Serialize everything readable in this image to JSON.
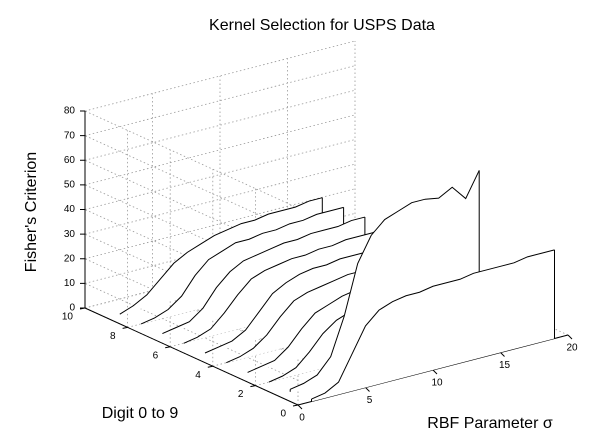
{
  "chart_data": {
    "type": "waterfall3d",
    "title": "Kernel Selection for USPS Data",
    "xlabel": "RBF Parameter σ",
    "ylabel": "Digit 0 to 9",
    "zlabel": "Fisher's Criterion",
    "color": "#000000",
    "grid": true,
    "x": [
      1,
      2,
      3,
      4,
      5,
      6,
      7,
      8,
      9,
      10,
      11,
      12,
      13,
      14,
      15,
      16,
      17,
      18,
      19
    ],
    "digits": [
      0,
      1,
      2,
      3,
      4,
      5,
      6,
      7,
      8,
      9
    ],
    "series": [
      {
        "values": [
          1,
          2,
          5,
          15,
          25,
          30,
          32,
          33,
          33,
          34,
          34,
          34,
          35,
          35,
          35,
          35,
          36,
          36,
          36
        ]
      },
      {
        "values": [
          1,
          2,
          4,
          10,
          25,
          45,
          55,
          60,
          62,
          64,
          64,
          63,
          66,
          60,
          70,
          null,
          null,
          null,
          null
        ]
      },
      {
        "values": [
          0,
          1,
          3,
          8,
          14,
          18,
          20,
          21,
          22,
          22,
          23,
          23,
          23,
          24,
          24,
          24,
          null,
          null,
          null
        ]
      },
      {
        "values": [
          0,
          1,
          2,
          6,
          12,
          17,
          19,
          21,
          22,
          22,
          23,
          23,
          24,
          24,
          24,
          25,
          null,
          null,
          null
        ]
      },
      {
        "values": [
          0,
          1,
          3,
          7,
          13,
          18,
          20,
          21,
          22,
          23,
          23,
          24,
          24,
          24,
          25,
          25,
          null,
          null,
          null
        ]
      },
      {
        "values": [
          0,
          1,
          2,
          5,
          11,
          17,
          20,
          22,
          23,
          23,
          24,
          24,
          24,
          25,
          25,
          25,
          null,
          null,
          null
        ]
      },
      {
        "values": [
          0,
          1,
          3,
          8,
          14,
          19,
          21,
          22,
          23,
          23,
          24,
          24,
          25,
          25,
          25,
          26,
          null,
          null,
          null
        ]
      },
      {
        "values": [
          0,
          1,
          2,
          6,
          13,
          18,
          21,
          22,
          23,
          24,
          24,
          25,
          25,
          25,
          26,
          26,
          null,
          null,
          null
        ]
      },
      {
        "values": [
          0,
          1,
          3,
          7,
          14,
          19,
          21,
          23,
          23,
          24,
          24,
          25,
          25,
          26,
          26,
          26,
          null,
          null,
          null
        ]
      },
      {
        "values": [
          0,
          2,
          5,
          10,
          15,
          18,
          20,
          22,
          23,
          24,
          24,
          25,
          25,
          25,
          26,
          26,
          null,
          null,
          null
        ]
      }
    ],
    "xlim": [
      0,
      20
    ],
    "xticks": [
      0,
      5,
      10,
      15,
      20
    ],
    "ylim": [
      0,
      10
    ],
    "yticks": [
      0,
      2,
      4,
      6,
      8,
      10
    ],
    "zlim": [
      0,
      80
    ],
    "zticks": [
      0,
      10,
      20,
      30,
      40,
      50,
      60,
      70,
      80
    ]
  }
}
